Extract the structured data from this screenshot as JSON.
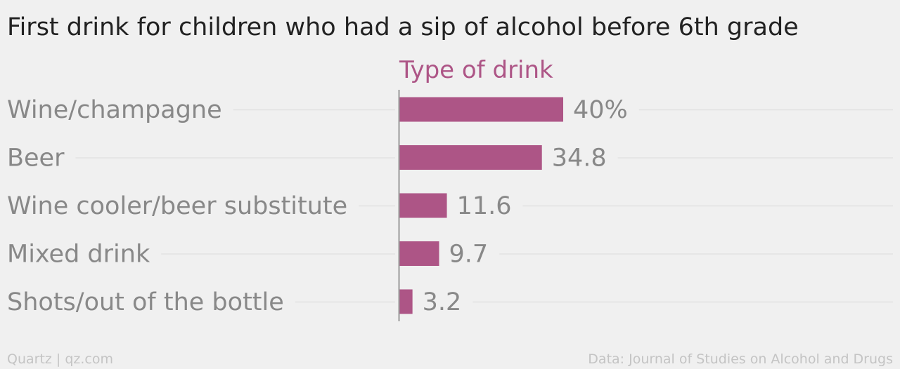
{
  "chart_data": {
    "type": "bar",
    "orientation": "horizontal",
    "title": "First drink for children who had a sip of alcohol before 6th grade",
    "legend_title": "Type of drink",
    "categories": [
      "Wine/champagne",
      "Beer",
      "Wine cooler/beer substitute",
      "Mixed drink",
      "Shots/out of the bottle"
    ],
    "values": [
      40,
      34.8,
      11.6,
      9.7,
      3.2
    ],
    "value_labels": [
      "40%",
      "34.8",
      "11.6",
      "9.7",
      "3.2"
    ],
    "xlim": [
      0,
      40
    ],
    "grid": true,
    "bar_color": "#ad5586"
  },
  "footer": {
    "source_left": "Quartz | qz.com",
    "source_right": "Data: Journal of Studies on Alcohol and Drugs"
  },
  "colors": {
    "background": "#f0f0f0",
    "accent": "#ad5586",
    "label": "#888888",
    "title": "#222222"
  }
}
